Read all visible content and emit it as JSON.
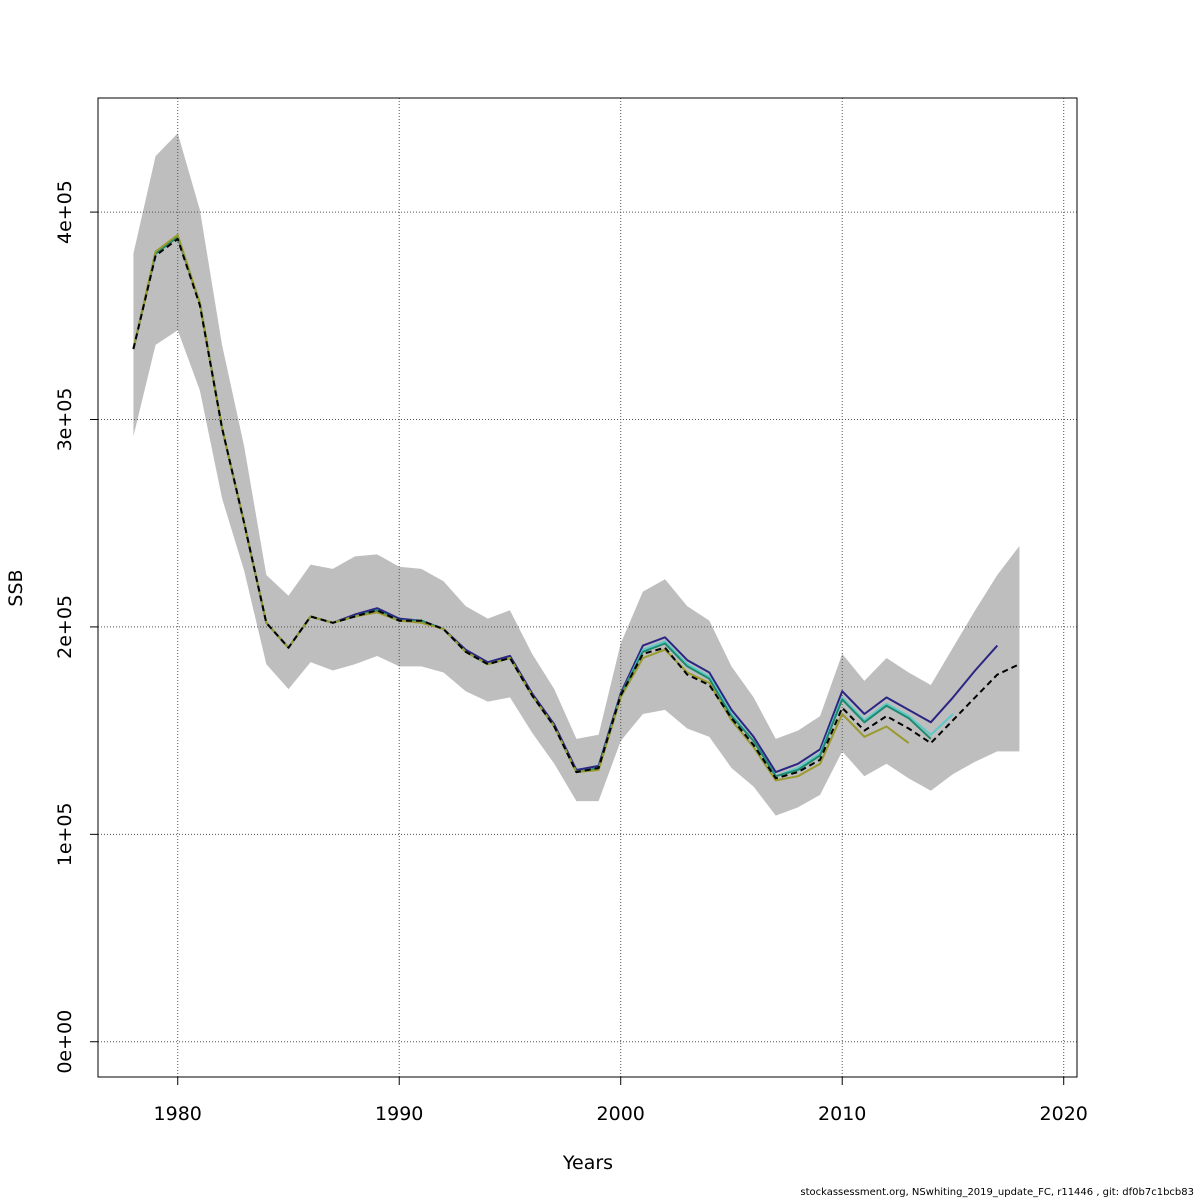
{
  "chart_data": {
    "type": "line",
    "xlabel": "Years",
    "ylabel": "SSB",
    "xlim": [
      1976.4,
      2020.6
    ],
    "ylim": [
      -17000,
      455000
    ],
    "x_ticks": [
      1980,
      1990,
      2000,
      2010,
      2020
    ],
    "y_ticks": [
      0,
      100000,
      200000,
      300000,
      400000
    ],
    "y_tick_labels": [
      "0e+00",
      "1e+05",
      "2e+05",
      "3e+05",
      "4e+05"
    ],
    "grid": true,
    "confidence_band": {
      "x": [
        1978,
        1979,
        1980,
        1981,
        1982,
        1983,
        1984,
        1985,
        1986,
        1987,
        1988,
        1989,
        1990,
        1991,
        1992,
        1993,
        1994,
        1995,
        1996,
        1997,
        1998,
        1999,
        2000,
        2001,
        2002,
        2003,
        2004,
        2005,
        2006,
        2007,
        2008,
        2009,
        2010,
        2011,
        2012,
        2013,
        2014,
        2015,
        2016,
        2017,
        2018
      ],
      "upper": [
        380000,
        427000,
        438000,
        401000,
        336000,
        287000,
        225000,
        215000,
        230000,
        228000,
        234000,
        235000,
        229000,
        228000,
        222000,
        210000,
        204000,
        208000,
        187000,
        170000,
        146000,
        148000,
        192000,
        217000,
        223000,
        210000,
        203000,
        181000,
        166000,
        146000,
        150000,
        157000,
        187000,
        174000,
        185000,
        178000,
        172000,
        190000,
        208000,
        225000,
        239000
      ],
      "lower": [
        292000,
        336000,
        343000,
        314000,
        262000,
        227000,
        182000,
        170000,
        183000,
        179000,
        182000,
        186000,
        181000,
        181000,
        178000,
        169000,
        164000,
        166000,
        149000,
        134000,
        116000,
        116000,
        145000,
        158000,
        160000,
        151000,
        147000,
        132000,
        123000,
        109000,
        113000,
        119000,
        140000,
        128000,
        134000,
        127000,
        121000,
        129000,
        135000,
        140000,
        140000
      ]
    },
    "series": [
      {
        "color": "#2b2583",
        "dash": false,
        "x": [
          1978,
          1979,
          1980,
          1981,
          1982,
          1983,
          1984,
          1985,
          1986,
          1987,
          1988,
          1989,
          1990,
          1991,
          1992,
          1993,
          1994,
          1995,
          1996,
          1997,
          1998,
          1999,
          2000,
          2001,
          2002,
          2003,
          2004,
          2005,
          2006,
          2007,
          2008,
          2009,
          2010,
          2011,
          2012,
          2013,
          2014,
          2015,
          2016,
          2017
        ],
        "y": [
          334000,
          380000,
          388000,
          356000,
          296000,
          250000,
          202000,
          190000,
          205000,
          202000,
          206000,
          209000,
          204000,
          203000,
          199000,
          189000,
          183000,
          186000,
          168000,
          153000,
          131000,
          133000,
          168000,
          191000,
          195000,
          184000,
          178000,
          160000,
          147000,
          130000,
          134000,
          141000,
          169000,
          158000,
          166000,
          160000,
          154000,
          166000,
          179000,
          191000
        ]
      },
      {
        "color": "#5cc8c8",
        "dash": false,
        "x": [
          1978,
          1979,
          1980,
          1981,
          1982,
          1983,
          1984,
          1985,
          1986,
          1987,
          1988,
          1989,
          1990,
          1991,
          1992,
          1993,
          1994,
          1995,
          1996,
          1997,
          1998,
          1999,
          2000,
          2001,
          2002,
          2003,
          2004,
          2005,
          2006,
          2007,
          2008,
          2009,
          2010,
          2011,
          2012,
          2013,
          2014,
          2015
        ],
        "y": [
          334000,
          380000,
          388000,
          356000,
          296000,
          250000,
          202000,
          190000,
          205000,
          202000,
          205000,
          208000,
          203000,
          203000,
          199000,
          188000,
          182000,
          185000,
          167000,
          152000,
          130000,
          132000,
          167000,
          189000,
          193000,
          182000,
          176000,
          158000,
          145000,
          128000,
          132000,
          139000,
          166000,
          155000,
          163000,
          157000,
          148000,
          158000
        ]
      },
      {
        "color": "#1e8a6e",
        "dash": false,
        "x": [
          1978,
          1979,
          1980,
          1981,
          1982,
          1983,
          1984,
          1985,
          1986,
          1987,
          1988,
          1989,
          1990,
          1991,
          1992,
          1993,
          1994,
          1995,
          1996,
          1997,
          1998,
          1999,
          2000,
          2001,
          2002,
          2003,
          2004,
          2005,
          2006,
          2007,
          2008,
          2009,
          2010,
          2011,
          2012,
          2013,
          2014
        ],
        "y": [
          334000,
          380000,
          388000,
          356000,
          296000,
          250000,
          202000,
          190000,
          205000,
          202000,
          205000,
          208000,
          203000,
          203000,
          199000,
          188000,
          182000,
          185000,
          167000,
          152000,
          130000,
          132000,
          167000,
          188000,
          192000,
          181000,
          175000,
          157000,
          145000,
          128000,
          131000,
          138000,
          165000,
          154000,
          162000,
          156000,
          146000
        ]
      },
      {
        "color": "#9a9a2e",
        "dash": false,
        "x": [
          1978,
          1979,
          1980,
          1981,
          1982,
          1983,
          1984,
          1985,
          1986,
          1987,
          1988,
          1989,
          1990,
          1991,
          1992,
          1993,
          1994,
          1995,
          1996,
          1997,
          1998,
          1999,
          2000,
          2001,
          2002,
          2003,
          2004,
          2005,
          2006,
          2007,
          2008,
          2009,
          2010,
          2011,
          2012,
          2013
        ],
        "y": [
          334000,
          381000,
          389000,
          356000,
          296000,
          250000,
          202000,
          190000,
          205000,
          202000,
          205000,
          207000,
          203000,
          202000,
          199000,
          188000,
          182000,
          185000,
          167000,
          152000,
          130000,
          131000,
          166000,
          185000,
          189000,
          178000,
          173000,
          155000,
          142000,
          126000,
          128000,
          134000,
          158000,
          147000,
          152000,
          144000
        ]
      },
      {
        "color": "#000000",
        "dash": true,
        "x": [
          1978,
          1979,
          1980,
          1981,
          1982,
          1983,
          1984,
          1985,
          1986,
          1987,
          1988,
          1989,
          1990,
          1991,
          1992,
          1993,
          1994,
          1995,
          1996,
          1997,
          1998,
          1999,
          2000,
          2001,
          2002,
          2003,
          2004,
          2005,
          2006,
          2007,
          2008,
          2009,
          2010,
          2011,
          2012,
          2013,
          2014,
          2015,
          2016,
          2017,
          2018
        ],
        "y": [
          334000,
          379000,
          387000,
          355000,
          296000,
          250000,
          202000,
          190000,
          205000,
          202000,
          205000,
          208000,
          203000,
          203000,
          199000,
          188000,
          182000,
          185000,
          167000,
          152000,
          130000,
          132000,
          167000,
          187000,
          190000,
          177000,
          172000,
          156000,
          143000,
          127000,
          130000,
          136000,
          161000,
          150000,
          157000,
          151000,
          144000,
          155000,
          166000,
          177000,
          182000
        ]
      }
    ]
  },
  "footer": {
    "text": "stockassessment.org, NSwhiting_2019_update_FC, r11446 , git: df0b7c1bcb83"
  }
}
